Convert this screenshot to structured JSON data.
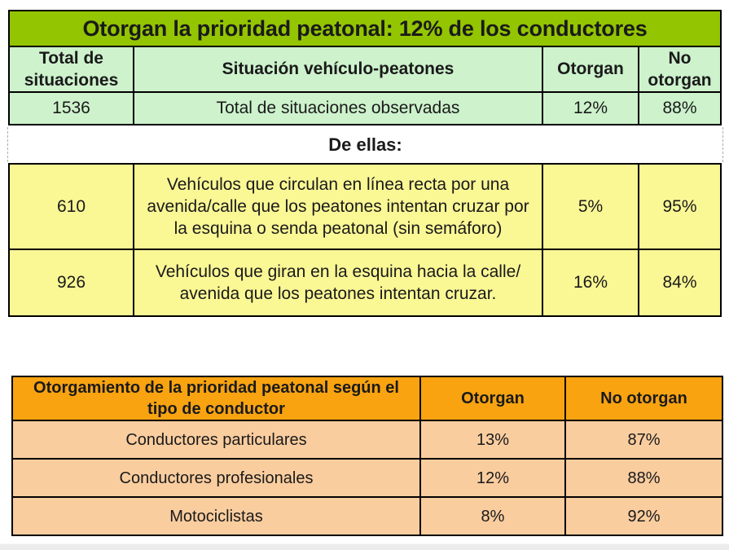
{
  "colors": {
    "title_green": "#93C501",
    "pale_green": "#CDF2CC",
    "pale_yellow": "#FAF795",
    "orange": "#F9A311",
    "peach": "#FACD9F",
    "grid_border": "#000000",
    "text": "#1A1A1A",
    "bottom_strip": "#ECECEC"
  },
  "summary_table": {
    "title": "Otorgan la prioridad peatonal: 12% de los conductores",
    "headers": [
      "Total de situaciones",
      "Situación vehículo-peatones",
      "Otorgan",
      "No otorgan"
    ],
    "total_row": {
      "count": "1536",
      "label": "Total de situaciones observadas",
      "otorgan": "12%",
      "no_otorgan": "88%"
    },
    "separator_label": "De ellas:"
  },
  "breakdown_rows": [
    {
      "count": "610",
      "label": "Vehículos que circulan en línea recta por una avenida/calle que los peatones intentan cruzar por la esquina o senda peatonal (sin semáforo)",
      "otorgan": "5%",
      "no_otorgan": "95%"
    },
    {
      "count": "926",
      "label": "Vehículos que giran en la esquina hacia la calle/ avenida que los peatones intentan cruzar.",
      "otorgan": "16%",
      "no_otorgan": "84%"
    }
  ],
  "driver_table": {
    "headers": [
      "Otorgamiento de la prioridad peatonal según el tipo de conductor",
      "Otorgan",
      "No otorgan"
    ],
    "rows": [
      {
        "label": "Conductores particulares",
        "otorgan": "13%",
        "no_otorgan": "87%"
      },
      {
        "label": "Conductores profesionales",
        "otorgan": "12%",
        "no_otorgan": "88%"
      },
      {
        "label": "Motociclistas",
        "otorgan": "8%",
        "no_otorgan": "92%"
      }
    ]
  }
}
